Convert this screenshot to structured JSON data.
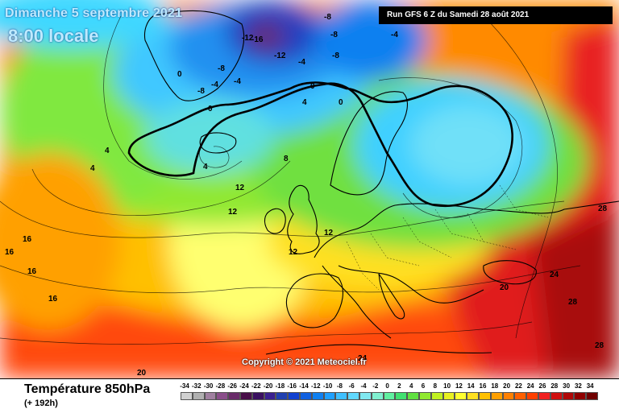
{
  "header": {
    "date": "Dimanche 5 septembre 2021",
    "time": "8:00 locale",
    "run": "Run GFS 6 Z du Samedi 28 août 2021"
  },
  "copyright": "Copyright © 2021 Meteociel.fr",
  "footer": {
    "title": "Température 850hPa",
    "subtitle": "(+ 192h)"
  },
  "legend": {
    "ticks": [
      "-34",
      "-32",
      "-30",
      "-28",
      "-26",
      "-24",
      "-22",
      "-20",
      "-18",
      "-16",
      "-14",
      "-12",
      "-10",
      "-8",
      "-6",
      "-4",
      "-2",
      "0",
      "2",
      "4",
      "6",
      "8",
      "10",
      "12",
      "14",
      "16",
      "18",
      "20",
      "22",
      "24",
      "26",
      "28",
      "30",
      "32",
      "34"
    ],
    "colors": [
      "#d0d0d0",
      "#b0b0b0",
      "#a080a0",
      "#8a4e8a",
      "#6a2c6a",
      "#4a104a",
      "#3a1060",
      "#3a2090",
      "#2040b0",
      "#1040d0",
      "#1060e0",
      "#1080f0",
      "#20a0ff",
      "#40c0ff",
      "#60d8ff",
      "#80e8f0",
      "#80f0d0",
      "#60f0a0",
      "#40e070",
      "#60e040",
      "#90e830",
      "#c0f020",
      "#e8f020",
      "#ffff30",
      "#ffe020",
      "#ffc000",
      "#ffa000",
      "#ff8000",
      "#ff6000",
      "#ff4000",
      "#f02020",
      "#d01010",
      "#b00808",
      "#900000",
      "#700000"
    ]
  },
  "isotherms": [
    {
      "label": "-8",
      "kind": "neg"
    },
    {
      "label": "-12",
      "kind": "neg"
    },
    {
      "label": "-16",
      "kind": "neg"
    },
    {
      "label": "-12",
      "kind": "neg"
    },
    {
      "label": "-8",
      "kind": "neg"
    },
    {
      "label": "-4",
      "kind": "neg"
    },
    {
      "label": "-8",
      "kind": "neg"
    },
    {
      "label": "-4",
      "kind": "neg"
    },
    {
      "label": "-4",
      "kind": "neg"
    },
    {
      "label": "-8",
      "kind": "neg"
    },
    {
      "label": "-8",
      "kind": "neg"
    },
    {
      "label": "-4",
      "kind": "neg"
    },
    {
      "label": "0",
      "kind": "zero"
    },
    {
      "label": "0",
      "kind": "zero"
    },
    {
      "label": "0",
      "kind": "zero"
    },
    {
      "label": "0",
      "kind": "zero"
    },
    {
      "label": "4",
      "kind": "pos"
    },
    {
      "label": "4",
      "kind": "pos"
    },
    {
      "label": "4",
      "kind": "pos"
    },
    {
      "label": "4",
      "kind": "pos"
    },
    {
      "label": "8",
      "kind": "pos"
    },
    {
      "label": "12",
      "kind": "pos"
    },
    {
      "label": "12",
      "kind": "pos"
    },
    {
      "label": "12",
      "kind": "pos"
    },
    {
      "label": "12",
      "kind": "pos"
    },
    {
      "label": "16",
      "kind": "pos"
    },
    {
      "label": "16",
      "kind": "pos"
    },
    {
      "label": "16",
      "kind": "pos"
    },
    {
      "label": "16",
      "kind": "pos"
    },
    {
      "label": "20",
      "kind": "pos"
    },
    {
      "label": "20",
      "kind": "pos"
    },
    {
      "label": "24",
      "kind": "pos"
    },
    {
      "label": "24",
      "kind": "pos"
    },
    {
      "label": "28",
      "kind": "pos"
    },
    {
      "label": "28",
      "kind": "pos"
    },
    {
      "label": "28",
      "kind": "pos"
    }
  ]
}
